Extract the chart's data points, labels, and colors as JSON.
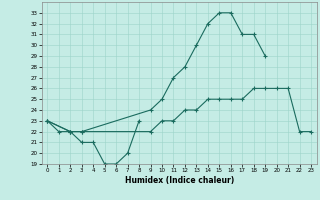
{
  "bg_color": "#c5ece5",
  "line_color": "#1a6b5e",
  "grid_color": "#9dd4ca",
  "xlabel": "Humidex (Indice chaleur)",
  "xlim": [
    -0.5,
    23.5
  ],
  "ylim": [
    19,
    34
  ],
  "xticks": [
    0,
    1,
    2,
    3,
    4,
    5,
    6,
    7,
    8,
    9,
    10,
    11,
    12,
    13,
    14,
    15,
    16,
    17,
    18,
    19,
    20,
    21,
    22,
    23
  ],
  "yticks": [
    19,
    20,
    21,
    22,
    23,
    24,
    25,
    26,
    27,
    28,
    29,
    30,
    31,
    32,
    33
  ],
  "curve1_x": [
    0,
    1,
    2,
    3,
    4,
    5,
    6,
    7,
    8
  ],
  "curve1_y": [
    23,
    22,
    22,
    21,
    21,
    19,
    19,
    20,
    23
  ],
  "curve2_x": [
    0,
    2,
    3,
    9,
    10,
    11,
    12,
    13,
    14,
    15,
    16,
    17,
    18,
    19
  ],
  "curve2_y": [
    23,
    22,
    22,
    24,
    25,
    27,
    28,
    30,
    32,
    33,
    33,
    31,
    31,
    29
  ],
  "curve3_x": [
    0,
    2,
    3,
    9,
    10,
    11,
    12,
    13,
    14,
    15,
    16,
    17,
    18,
    19,
    20,
    21,
    22,
    23
  ],
  "curve3_y": [
    23,
    22,
    22,
    22,
    23,
    23,
    24,
    24,
    25,
    25,
    25,
    25,
    26,
    26,
    26,
    26,
    22,
    22
  ]
}
